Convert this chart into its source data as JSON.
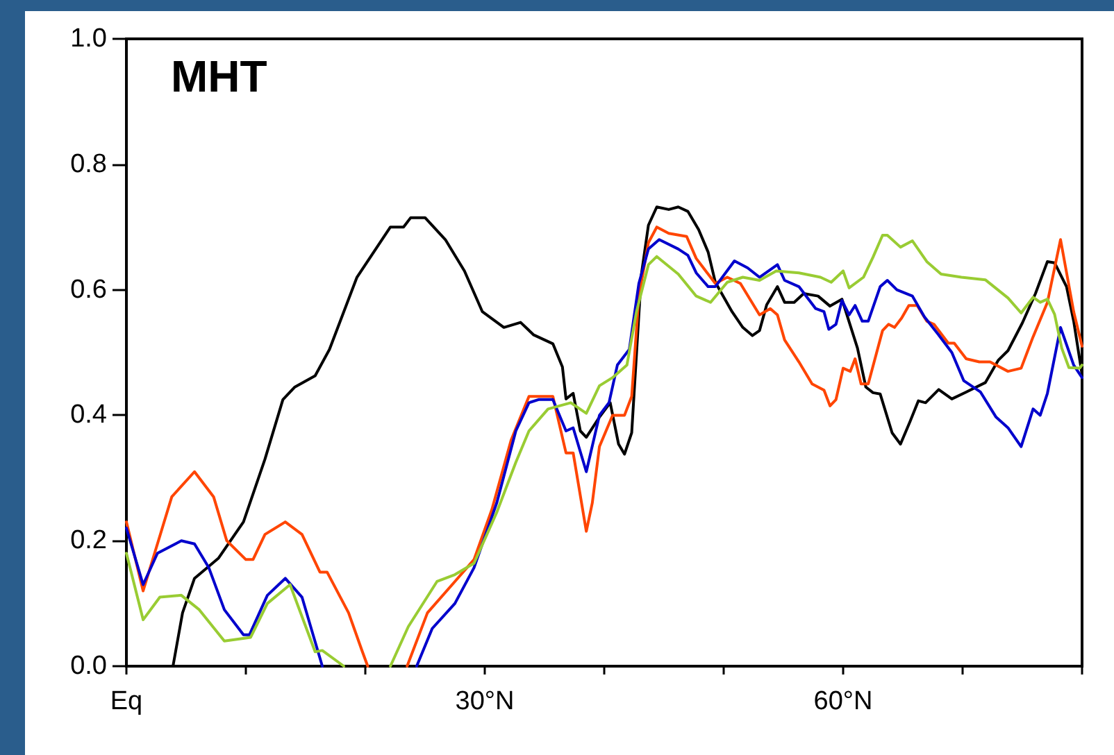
{
  "chart_data": {
    "type": "line",
    "title": "MHT",
    "xlim": [
      0,
      80
    ],
    "xticks": [
      {
        "value": 0,
        "label": "Eq"
      },
      {
        "value": 10,
        "label": null
      },
      {
        "value": 20,
        "label": null
      },
      {
        "value": 30,
        "label": "30°N"
      },
      {
        "value": 40,
        "label": null
      },
      {
        "value": 50,
        "label": null
      },
      {
        "value": 60,
        "label": "60°N"
      },
      {
        "value": 70,
        "label": null
      },
      {
        "value": 80,
        "label": null
      }
    ],
    "ylim": [
      0,
      1
    ],
    "yticks": [
      {
        "value": 0,
        "label": "0.0"
      },
      {
        "value": 0.2,
        "label": "0.2"
      },
      {
        "value": 0.4,
        "label": "0.4"
      },
      {
        "value": 0.6,
        "label": "0.6"
      },
      {
        "value": 0.8,
        "label": "0.8"
      },
      {
        "value": 1,
        "label": "1.0"
      }
    ],
    "grid": false,
    "marker": "none",
    "line_style": "solid",
    "series": [
      {
        "color": "#000000",
        "x": [
          3.9,
          4.7,
          5.7,
          7.7,
          9.8,
          11.6,
          13.1,
          14.1,
          15.8,
          17.0,
          19.3,
          22.1,
          23.2,
          23.8,
          25.0,
          26.7,
          28.3,
          29.8,
          31.6,
          33.0,
          34.1,
          35.7,
          36.5,
          36.8,
          37.4,
          38.0,
          38.5,
          39.6,
          40.5,
          41.2,
          41.7,
          42.3,
          43.1,
          43.7,
          44.4,
          45.4,
          46.2,
          47.0,
          47.9,
          48.7,
          49.3,
          50.7,
          51.6,
          52.4,
          53.0,
          53.6,
          54.5,
          55.1,
          55.9,
          56.7,
          57.9,
          58.9,
          59.9,
          60.6,
          61.2,
          61.9,
          62.5,
          63.1,
          64.1,
          64.8,
          65.6,
          66.3,
          66.9,
          68.0,
          69.1,
          70.3,
          71.9,
          73.0,
          73.8,
          75.0,
          76.1,
          77.1,
          77.7,
          78.7,
          79.3,
          80.0
        ],
        "values": [
          0,
          0.085,
          0.14,
          0.172,
          0.23,
          0.33,
          0.425,
          0.445,
          0.463,
          0.505,
          0.62,
          0.7,
          0.7,
          0.715,
          0.715,
          0.68,
          0.63,
          0.565,
          0.54,
          0.548,
          0.528,
          0.514,
          0.477,
          0.426,
          0.435,
          0.375,
          0.365,
          0.397,
          0.42,
          0.354,
          0.338,
          0.372,
          0.623,
          0.703,
          0.732,
          0.728,
          0.732,
          0.725,
          0.696,
          0.66,
          0.612,
          0.565,
          0.54,
          0.527,
          0.535,
          0.576,
          0.605,
          0.58,
          0.58,
          0.594,
          0.59,
          0.574,
          0.585,
          0.543,
          0.507,
          0.445,
          0.436,
          0.434,
          0.372,
          0.354,
          0.39,
          0.423,
          0.42,
          0.441,
          0.426,
          0.437,
          0.452,
          0.488,
          0.503,
          0.547,
          0.594,
          0.645,
          0.643,
          0.605,
          0.55,
          0.465
        ]
      },
      {
        "color": "#ff4500",
        "x": [
          0,
          1.4,
          3.8,
          5.7,
          7.3,
          8.4,
          10.0,
          10.6,
          11.6,
          13.3,
          14.7,
          16.2,
          16.8,
          18.6,
          19.7,
          20.2,
          21.8,
          23.5,
          25.2,
          27.5,
          29.1,
          30.6,
          32.2,
          33.7,
          35.7,
          36.8,
          37.4,
          38.5,
          39.0,
          39.6,
          40.7,
          41.7,
          42.3,
          42.9,
          43.7,
          44.4,
          45.4,
          46.9,
          47.7,
          49.3,
          50.3,
          51.4,
          53.0,
          53.9,
          54.5,
          55.1,
          56.3,
          57.4,
          58.4,
          58.9,
          59.4,
          60.0,
          60.6,
          61.0,
          61.5,
          62.1,
          63.3,
          63.8,
          64.3,
          64.9,
          65.5,
          66.2,
          67.0,
          67.6,
          68.8,
          69.3,
          70.3,
          71.4,
          72.3,
          73.8,
          74.9,
          75.9,
          77.1,
          78.2,
          79.3,
          80.0
        ],
        "values": [
          0.23,
          0.12,
          0.27,
          0.31,
          0.27,
          0.2,
          0.17,
          0.17,
          0.21,
          0.23,
          0.21,
          0.15,
          0.15,
          0.085,
          0.026,
          0,
          null,
          0,
          0.085,
          0.135,
          0.17,
          0.25,
          0.36,
          0.43,
          0.43,
          0.34,
          0.34,
          0.215,
          0.26,
          0.35,
          0.4,
          0.4,
          0.43,
          0.59,
          0.675,
          0.7,
          0.69,
          0.685,
          0.65,
          0.61,
          0.62,
          0.61,
          0.56,
          0.57,
          0.56,
          0.52,
          0.485,
          0.45,
          0.44,
          0.415,
          0.425,
          0.475,
          0.47,
          0.49,
          0.45,
          0.45,
          0.535,
          0.545,
          0.54,
          0.555,
          0.575,
          0.575,
          0.55,
          0.545,
          0.515,
          0.515,
          0.49,
          0.485,
          0.485,
          0.47,
          0.475,
          0.525,
          0.58,
          0.68,
          0.565,
          0.51
        ]
      },
      {
        "color": "#0000cc",
        "x": [
          0,
          1.4,
          2.6,
          4.6,
          5.7,
          6.9,
          8.2,
          9.8,
          10.3,
          11.8,
          13.3,
          14.7,
          16.4,
          20.0,
          24.3,
          25.6,
          27.5,
          29.1,
          31.0,
          32.6,
          33.7,
          34.5,
          35.7,
          36.8,
          37.4,
          38.5,
          39.6,
          40.4,
          41.1,
          42.1,
          42.9,
          43.7,
          44.6,
          46.2,
          47.0,
          47.7,
          48.7,
          49.3,
          50.9,
          52.0,
          53.0,
          54.5,
          55.1,
          56.3,
          57.7,
          58.4,
          58.8,
          59.4,
          59.9,
          60.5,
          61.0,
          61.6,
          62.1,
          63.1,
          63.7,
          64.5,
          65.8,
          66.8,
          68.0,
          69.1,
          70.1,
          71.5,
          72.8,
          73.8,
          74.9,
          75.9,
          76.5,
          77.1,
          78.2,
          79.3,
          80.0
        ],
        "values": [
          0.22,
          0.13,
          0.18,
          0.2,
          0.195,
          0.157,
          0.09,
          0.05,
          0.05,
          0.113,
          0.14,
          0.11,
          0,
          null,
          0,
          0.06,
          0.1,
          0.157,
          0.26,
          0.375,
          0.42,
          0.425,
          0.425,
          0.375,
          0.38,
          0.31,
          0.4,
          0.42,
          0.48,
          0.505,
          0.61,
          0.665,
          0.68,
          0.665,
          0.655,
          0.627,
          0.605,
          0.605,
          0.646,
          0.635,
          0.62,
          0.64,
          0.615,
          0.605,
          0.57,
          0.565,
          0.537,
          0.545,
          0.583,
          0.56,
          0.575,
          0.55,
          0.55,
          0.605,
          0.615,
          0.6,
          0.59,
          0.557,
          0.528,
          0.5,
          0.455,
          0.437,
          0.397,
          0.38,
          0.35,
          0.41,
          0.4,
          0.435,
          0.54,
          0.48,
          0.46
        ]
      },
      {
        "color": "#99cc33",
        "x": [
          0,
          1.4,
          2.8,
          4.6,
          6.1,
          8.2,
          10.4,
          11.8,
          13.7,
          15.8,
          16.4,
          18.2,
          20.0,
          22.1,
          23.6,
          26.0,
          27.5,
          29.1,
          31.0,
          32.6,
          33.7,
          35.3,
          37.2,
          38.5,
          39.6,
          40.7,
          41.9,
          42.7,
          43.7,
          44.4,
          46.2,
          47.7,
          48.9,
          50.3,
          51.6,
          53.0,
          54.4,
          56.3,
          58.1,
          59.0,
          60.0,
          60.5,
          61.7,
          62.5,
          63.3,
          63.7,
          64.8,
          65.8,
          67.0,
          68.2,
          69.9,
          71.9,
          73.8,
          74.9,
          75.9,
          76.5,
          77.1,
          77.7,
          78.3,
          78.9,
          79.8,
          80.0
        ],
        "values": [
          0.18,
          0.074,
          0.11,
          0.113,
          0.09,
          0.04,
          0.046,
          0.1,
          0.13,
          0.023,
          0.025,
          0,
          null,
          0,
          0.063,
          0.135,
          0.146,
          0.164,
          0.245,
          0.325,
          0.375,
          0.41,
          0.42,
          0.403,
          0.447,
          0.46,
          0.48,
          0.565,
          0.64,
          0.653,
          0.625,
          0.59,
          0.58,
          0.612,
          0.62,
          0.615,
          0.63,
          0.627,
          0.62,
          0.612,
          0.63,
          0.603,
          0.62,
          0.652,
          0.687,
          0.687,
          0.668,
          0.678,
          0.645,
          0.625,
          0.62,
          0.616,
          0.587,
          0.563,
          0.588,
          0.58,
          0.585,
          0.561,
          0.507,
          0.476,
          0.475,
          0.48
        ]
      }
    ]
  }
}
